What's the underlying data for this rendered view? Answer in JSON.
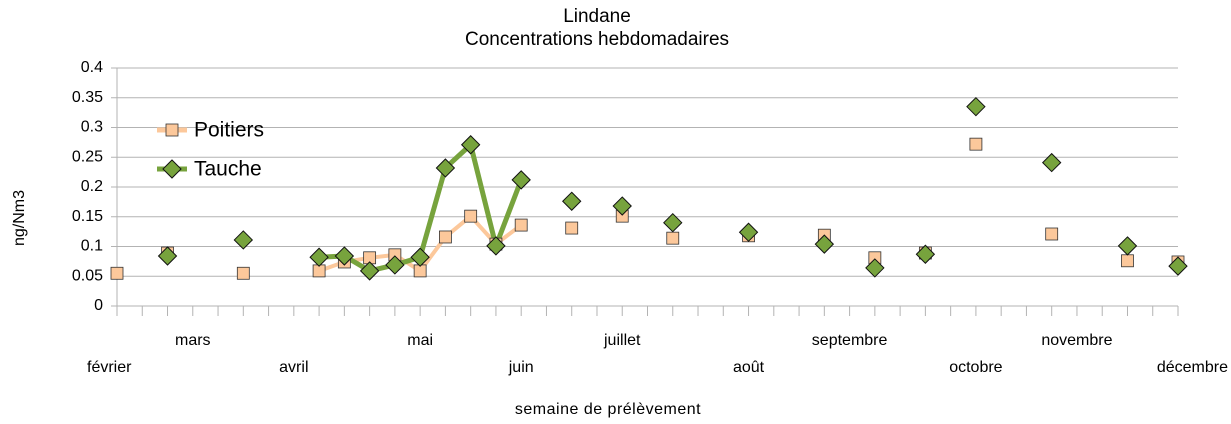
{
  "chart_data": {
    "type": "line",
    "title": "Lindane",
    "subtitle": "Concentrations hebdomadaires",
    "x_label": "semaine de prélèvement",
    "y_label": "ng/Nm3",
    "categories": [
      "février",
      null,
      null,
      "mars",
      null,
      null,
      null,
      "avril",
      null,
      null,
      null,
      null,
      "mai",
      null,
      null,
      null,
      "juin",
      null,
      null,
      null,
      "juillet",
      null,
      null,
      null,
      null,
      "août",
      null,
      null,
      null,
      "septembre",
      null,
      null,
      null,
      null,
      "octobre",
      null,
      null,
      null,
      "novembre",
      null,
      null,
      null,
      "décembre"
    ],
    "series": [
      {
        "name": "Poitiers",
        "color": "#fcc89b",
        "marker": "square",
        "values": [
          0.055,
          null,
          0.089,
          null,
          null,
          0.055,
          null,
          null,
          0.059,
          0.074,
          0.081,
          0.086,
          0.059,
          0.116,
          0.151,
          0.104,
          0.136,
          null,
          0.131,
          null,
          0.151,
          null,
          0.114,
          null,
          null,
          0.118,
          null,
          null,
          0.119,
          null,
          0.081,
          null,
          0.089,
          null,
          0.272,
          null,
          null,
          0.121,
          null,
          null,
          0.076,
          null,
          0.074
        ]
      },
      {
        "name": "Tauche",
        "color": "#77a33d",
        "marker": "diamond",
        "values": [
          null,
          null,
          0.084,
          null,
          null,
          0.111,
          null,
          null,
          0.082,
          0.084,
          0.059,
          0.069,
          0.082,
          0.232,
          0.271,
          0.101,
          0.212,
          null,
          0.176,
          null,
          0.168,
          null,
          0.14,
          null,
          null,
          0.124,
          null,
          null,
          0.104,
          null,
          0.064,
          null,
          0.087,
          null,
          0.335,
          null,
          null,
          0.241,
          null,
          null,
          0.101,
          null,
          0.067
        ]
      }
    ],
    "ylim": [
      0,
      0.4
    ],
    "yticks": [
      0,
      0.05,
      0.1,
      0.15,
      0.2,
      0.25,
      0.3,
      0.35,
      0.4
    ],
    "grid": true,
    "legend": "top-left"
  }
}
